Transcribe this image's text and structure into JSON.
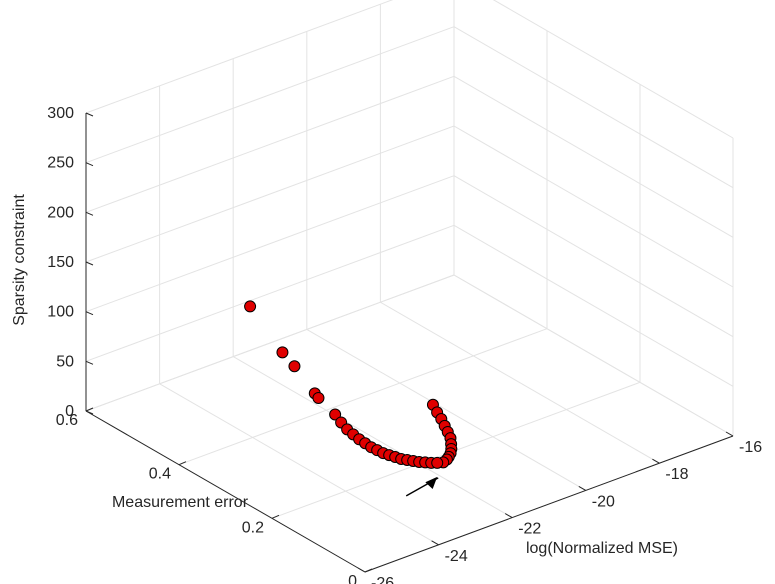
{
  "chart_data": {
    "type": "scatter",
    "title": "",
    "xlabel": "log(Normalized MSE)",
    "ylabel": "Measurement error",
    "zlabel": "Sparsity constraint",
    "x_ticks": [
      -26,
      -24,
      -22,
      -20,
      -18,
      -16
    ],
    "y_ticks": [
      0,
      0.2,
      0.4,
      0.6
    ],
    "z_ticks": [
      0,
      50,
      100,
      150,
      200,
      250,
      300
    ],
    "x_tick_labels": [
      "-26",
      "-24",
      "-22",
      "-20",
      "-18",
      "-16"
    ],
    "y_tick_labels": [
      "0",
      "0.2",
      "0.4",
      "0.6"
    ],
    "z_tick_labels": [
      "0",
      "50",
      "100",
      "150",
      "200",
      "250",
      "300"
    ],
    "xlim": [
      -26,
      -16
    ],
    "ylim": [
      0,
      0.6
    ],
    "zlim": [
      0,
      300
    ],
    "grid": true,
    "marker_color": "#e00000",
    "marker_edge": "#000000",
    "annotation": "arrow pointing to the curve minimum",
    "points": [
      {
        "x": -24.7,
        "y": 0.35,
        "z": 155
      },
      {
        "x": -24.2,
        "y": 0.32,
        "z": 110
      },
      {
        "x": -24.0,
        "y": 0.31,
        "z": 96
      },
      {
        "x": -23.7,
        "y": 0.29,
        "z": 70
      },
      {
        "x": -23.6,
        "y": 0.29,
        "z": 64
      },
      {
        "x": -23.4,
        "y": 0.27,
        "z": 50
      },
      {
        "x": -23.3,
        "y": 0.265,
        "z": 42
      },
      {
        "x": -23.2,
        "y": 0.26,
        "z": 35
      },
      {
        "x": -23.1,
        "y": 0.255,
        "z": 30
      },
      {
        "x": -23.0,
        "y": 0.25,
        "z": 25
      },
      {
        "x": -22.9,
        "y": 0.245,
        "z": 21
      },
      {
        "x": -22.8,
        "y": 0.24,
        "z": 17
      },
      {
        "x": -22.7,
        "y": 0.235,
        "z": 14
      },
      {
        "x": -22.6,
        "y": 0.23,
        "z": 11
      },
      {
        "x": -22.5,
        "y": 0.225,
        "z": 9
      },
      {
        "x": -22.4,
        "y": 0.22,
        "z": 7
      },
      {
        "x": -22.3,
        "y": 0.215,
        "z": 5
      },
      {
        "x": -22.2,
        "y": 0.21,
        "z": 4
      },
      {
        "x": -22.1,
        "y": 0.205,
        "z": 3
      },
      {
        "x": -22.0,
        "y": 0.2,
        "z": 2
      },
      {
        "x": -21.9,
        "y": 0.195,
        "z": 1.5
      },
      {
        "x": -21.8,
        "y": 0.19,
        "z": 1
      },
      {
        "x": -21.7,
        "y": 0.185,
        "z": 1
      },
      {
        "x": -21.6,
        "y": 0.18,
        "z": 1.5
      },
      {
        "x": -21.5,
        "y": 0.18,
        "z": 3
      },
      {
        "x": -21.45,
        "y": 0.18,
        "z": 5
      },
      {
        "x": -21.4,
        "y": 0.18,
        "z": 8
      },
      {
        "x": -21.38,
        "y": 0.18,
        "z": 12
      },
      {
        "x": -21.36,
        "y": 0.182,
        "z": 16
      },
      {
        "x": -21.34,
        "y": 0.185,
        "z": 21
      },
      {
        "x": -21.35,
        "y": 0.19,
        "z": 26
      },
      {
        "x": -21.37,
        "y": 0.195,
        "z": 31
      },
      {
        "x": -21.4,
        "y": 0.2,
        "z": 37
      },
      {
        "x": -21.45,
        "y": 0.205,
        "z": 43
      },
      {
        "x": -21.5,
        "y": 0.21,
        "z": 50
      }
    ]
  }
}
